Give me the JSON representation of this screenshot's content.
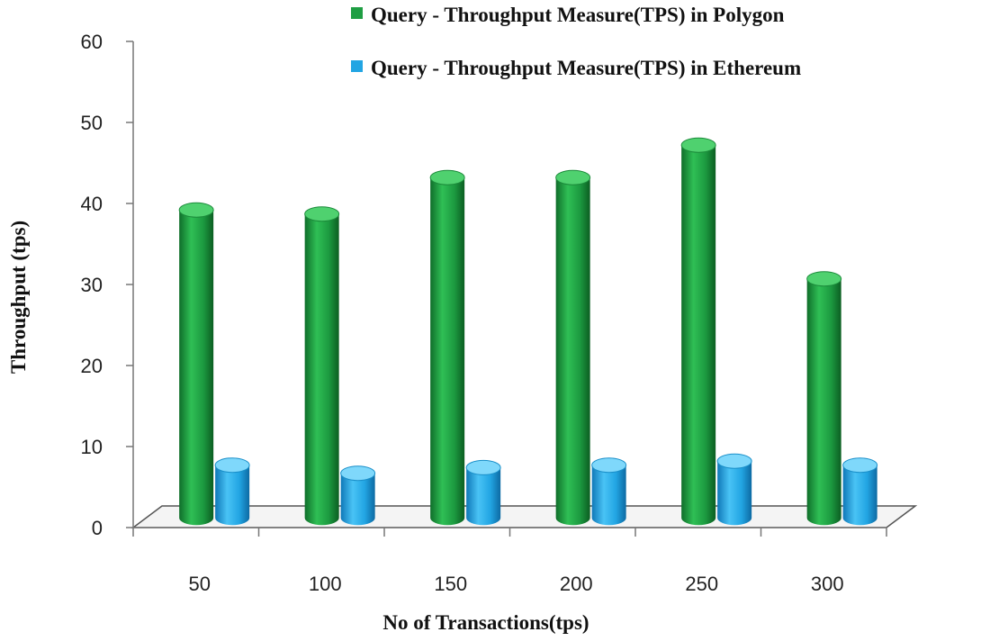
{
  "chart_data": {
    "type": "bar",
    "xlabel": "No of Transactions(tps)",
    "ylabel": "Throughput (tps)",
    "categories": [
      "50",
      "100",
      "150",
      "200",
      "250",
      "300"
    ],
    "ylim": [
      0,
      60
    ],
    "yticks": [
      0,
      10,
      20,
      30,
      40,
      50,
      60
    ],
    "grid": false,
    "legend_position": "top-right",
    "series": [
      {
        "name": "Query - Throughput Measure(TPS) in Polygon",
        "color": "#1f9e43",
        "values": [
          38,
          37.5,
          42,
          42,
          46,
          29.5
        ]
      },
      {
        "name": "Query - Throughput Measure(TPS) in Ethereum",
        "color": "#22a5e3",
        "values": [
          6.5,
          5.5,
          6.2,
          6.5,
          7,
          6.5
        ]
      }
    ]
  }
}
